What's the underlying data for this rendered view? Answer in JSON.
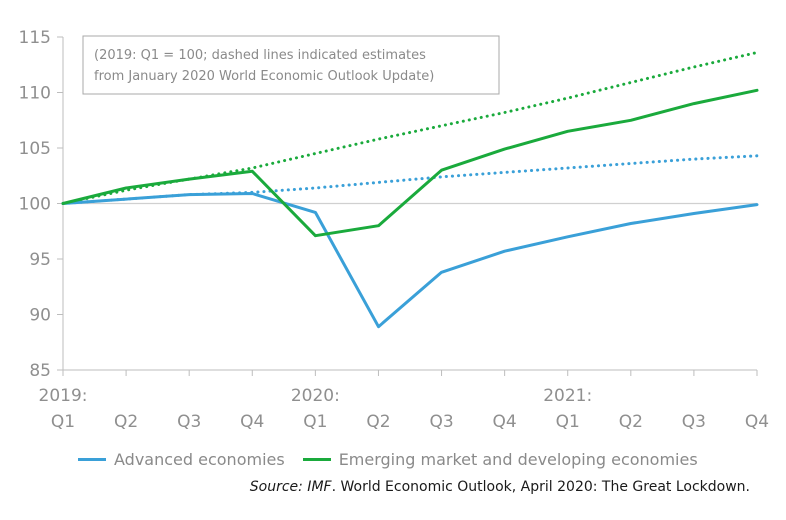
{
  "chart_data": {
    "type": "line",
    "annotation_lines": [
      "(2019: Q1 = 100; dashed lines indicated estimates",
      "from January 2020 World Economic Outlook Update)"
    ],
    "x_ticks": [
      {
        "year": "2019:",
        "q": "Q1"
      },
      {
        "year": "",
        "q": "Q2"
      },
      {
        "year": "",
        "q": "Q3"
      },
      {
        "year": "",
        "q": "Q4"
      },
      {
        "year": "2020:",
        "q": "Q1"
      },
      {
        "year": "",
        "q": "Q2"
      },
      {
        "year": "",
        "q": "Q3"
      },
      {
        "year": "",
        "q": "Q4"
      },
      {
        "year": "2021:",
        "q": "Q1"
      },
      {
        "year": "",
        "q": "Q2"
      },
      {
        "year": "",
        "q": "Q3"
      },
      {
        "year": "",
        "q": "Q4"
      }
    ],
    "x": [
      "2019:Q1",
      "2019:Q2",
      "2019:Q3",
      "2019:Q4",
      "2020:Q1",
      "2020:Q2",
      "2020:Q3",
      "2020:Q4",
      "2021:Q1",
      "2021:Q2",
      "2021:Q3",
      "2021:Q4"
    ],
    "y_ticks": [
      115,
      110,
      105,
      100,
      95,
      90,
      85
    ],
    "ylim": [
      85,
      115
    ],
    "reference_line": 100,
    "series": [
      {
        "name": "Advanced economies",
        "color": "#3aa0d8",
        "style": "solid",
        "values": [
          100,
          100.4,
          100.8,
          100.9,
          99.2,
          88.9,
          93.8,
          95.7,
          97.0,
          98.2,
          99.1,
          99.9
        ]
      },
      {
        "name": "Emerging market and developing economies",
        "color": "#1aaa3c",
        "style": "solid",
        "values": [
          100,
          101.4,
          102.2,
          102.9,
          97.1,
          98.0,
          103.0,
          104.9,
          106.5,
          107.5,
          109.0,
          110.2
        ]
      },
      {
        "name": "",
        "color": "#3aa0d8",
        "style": "dotted",
        "values": [
          100,
          100.4,
          100.8,
          101.0,
          101.4,
          101.9,
          102.4,
          102.8,
          103.2,
          103.6,
          104.0,
          104.3
        ]
      },
      {
        "name": "",
        "color": "#1aaa3c",
        "style": "dotted",
        "values": [
          100,
          101.2,
          102.2,
          103.2,
          104.5,
          105.8,
          107.0,
          108.2,
          109.5,
          110.9,
          112.3,
          113.6
        ]
      }
    ],
    "legend": [
      {
        "label": "Advanced economies",
        "color": "#3aa0d8"
      },
      {
        "label": "Emerging market and developing economies",
        "color": "#1aaa3c"
      }
    ],
    "source_italic": "Source: IMF",
    "source_rest": ". World Economic Outlook, April 2020: The Great Lockdown."
  }
}
